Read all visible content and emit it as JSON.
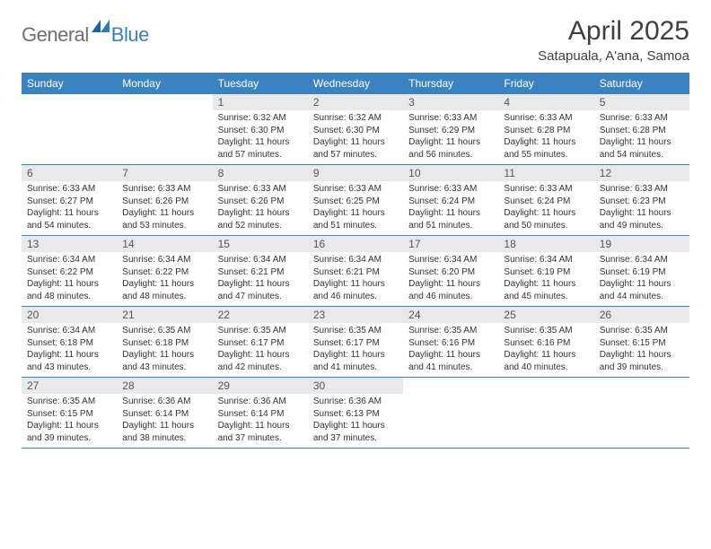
{
  "logo": {
    "general": "General",
    "blue": "Blue"
  },
  "title": "April 2025",
  "location": "Satapuala, A'ana, Samoa",
  "colors": {
    "header_bg": "#3b83c0",
    "header_text": "#ffffff",
    "daynum_bg": "#e9e9e9",
    "daynum_text": "#555555",
    "body_text": "#333333",
    "divider": "#3b83c0",
    "logo_general": "#6f6f6f",
    "logo_blue": "#3a7fc0",
    "title_color": "#3f3f3f"
  },
  "day_names": [
    "Sunday",
    "Monday",
    "Tuesday",
    "Wednesday",
    "Thursday",
    "Friday",
    "Saturday"
  ],
  "weeks": [
    [
      {
        "empty": true
      },
      {
        "empty": true
      },
      {
        "num": "1",
        "sunrise": "Sunrise: 6:32 AM",
        "sunset": "Sunset: 6:30 PM",
        "dl1": "Daylight: 11 hours",
        "dl2": "and 57 minutes."
      },
      {
        "num": "2",
        "sunrise": "Sunrise: 6:32 AM",
        "sunset": "Sunset: 6:30 PM",
        "dl1": "Daylight: 11 hours",
        "dl2": "and 57 minutes."
      },
      {
        "num": "3",
        "sunrise": "Sunrise: 6:33 AM",
        "sunset": "Sunset: 6:29 PM",
        "dl1": "Daylight: 11 hours",
        "dl2": "and 56 minutes."
      },
      {
        "num": "4",
        "sunrise": "Sunrise: 6:33 AM",
        "sunset": "Sunset: 6:28 PM",
        "dl1": "Daylight: 11 hours",
        "dl2": "and 55 minutes."
      },
      {
        "num": "5",
        "sunrise": "Sunrise: 6:33 AM",
        "sunset": "Sunset: 6:28 PM",
        "dl1": "Daylight: 11 hours",
        "dl2": "and 54 minutes."
      }
    ],
    [
      {
        "num": "6",
        "sunrise": "Sunrise: 6:33 AM",
        "sunset": "Sunset: 6:27 PM",
        "dl1": "Daylight: 11 hours",
        "dl2": "and 54 minutes."
      },
      {
        "num": "7",
        "sunrise": "Sunrise: 6:33 AM",
        "sunset": "Sunset: 6:26 PM",
        "dl1": "Daylight: 11 hours",
        "dl2": "and 53 minutes."
      },
      {
        "num": "8",
        "sunrise": "Sunrise: 6:33 AM",
        "sunset": "Sunset: 6:26 PM",
        "dl1": "Daylight: 11 hours",
        "dl2": "and 52 minutes."
      },
      {
        "num": "9",
        "sunrise": "Sunrise: 6:33 AM",
        "sunset": "Sunset: 6:25 PM",
        "dl1": "Daylight: 11 hours",
        "dl2": "and 51 minutes."
      },
      {
        "num": "10",
        "sunrise": "Sunrise: 6:33 AM",
        "sunset": "Sunset: 6:24 PM",
        "dl1": "Daylight: 11 hours",
        "dl2": "and 51 minutes."
      },
      {
        "num": "11",
        "sunrise": "Sunrise: 6:33 AM",
        "sunset": "Sunset: 6:24 PM",
        "dl1": "Daylight: 11 hours",
        "dl2": "and 50 minutes."
      },
      {
        "num": "12",
        "sunrise": "Sunrise: 6:33 AM",
        "sunset": "Sunset: 6:23 PM",
        "dl1": "Daylight: 11 hours",
        "dl2": "and 49 minutes."
      }
    ],
    [
      {
        "num": "13",
        "sunrise": "Sunrise: 6:34 AM",
        "sunset": "Sunset: 6:22 PM",
        "dl1": "Daylight: 11 hours",
        "dl2": "and 48 minutes."
      },
      {
        "num": "14",
        "sunrise": "Sunrise: 6:34 AM",
        "sunset": "Sunset: 6:22 PM",
        "dl1": "Daylight: 11 hours",
        "dl2": "and 48 minutes."
      },
      {
        "num": "15",
        "sunrise": "Sunrise: 6:34 AM",
        "sunset": "Sunset: 6:21 PM",
        "dl1": "Daylight: 11 hours",
        "dl2": "and 47 minutes."
      },
      {
        "num": "16",
        "sunrise": "Sunrise: 6:34 AM",
        "sunset": "Sunset: 6:21 PM",
        "dl1": "Daylight: 11 hours",
        "dl2": "and 46 minutes."
      },
      {
        "num": "17",
        "sunrise": "Sunrise: 6:34 AM",
        "sunset": "Sunset: 6:20 PM",
        "dl1": "Daylight: 11 hours",
        "dl2": "and 46 minutes."
      },
      {
        "num": "18",
        "sunrise": "Sunrise: 6:34 AM",
        "sunset": "Sunset: 6:19 PM",
        "dl1": "Daylight: 11 hours",
        "dl2": "and 45 minutes."
      },
      {
        "num": "19",
        "sunrise": "Sunrise: 6:34 AM",
        "sunset": "Sunset: 6:19 PM",
        "dl1": "Daylight: 11 hours",
        "dl2": "and 44 minutes."
      }
    ],
    [
      {
        "num": "20",
        "sunrise": "Sunrise: 6:34 AM",
        "sunset": "Sunset: 6:18 PM",
        "dl1": "Daylight: 11 hours",
        "dl2": "and 43 minutes."
      },
      {
        "num": "21",
        "sunrise": "Sunrise: 6:35 AM",
        "sunset": "Sunset: 6:18 PM",
        "dl1": "Daylight: 11 hours",
        "dl2": "and 43 minutes."
      },
      {
        "num": "22",
        "sunrise": "Sunrise: 6:35 AM",
        "sunset": "Sunset: 6:17 PM",
        "dl1": "Daylight: 11 hours",
        "dl2": "and 42 minutes."
      },
      {
        "num": "23",
        "sunrise": "Sunrise: 6:35 AM",
        "sunset": "Sunset: 6:17 PM",
        "dl1": "Daylight: 11 hours",
        "dl2": "and 41 minutes."
      },
      {
        "num": "24",
        "sunrise": "Sunrise: 6:35 AM",
        "sunset": "Sunset: 6:16 PM",
        "dl1": "Daylight: 11 hours",
        "dl2": "and 41 minutes."
      },
      {
        "num": "25",
        "sunrise": "Sunrise: 6:35 AM",
        "sunset": "Sunset: 6:16 PM",
        "dl1": "Daylight: 11 hours",
        "dl2": "and 40 minutes."
      },
      {
        "num": "26",
        "sunrise": "Sunrise: 6:35 AM",
        "sunset": "Sunset: 6:15 PM",
        "dl1": "Daylight: 11 hours",
        "dl2": "and 39 minutes."
      }
    ],
    [
      {
        "num": "27",
        "sunrise": "Sunrise: 6:35 AM",
        "sunset": "Sunset: 6:15 PM",
        "dl1": "Daylight: 11 hours",
        "dl2": "and 39 minutes."
      },
      {
        "num": "28",
        "sunrise": "Sunrise: 6:36 AM",
        "sunset": "Sunset: 6:14 PM",
        "dl1": "Daylight: 11 hours",
        "dl2": "and 38 minutes."
      },
      {
        "num": "29",
        "sunrise": "Sunrise: 6:36 AM",
        "sunset": "Sunset: 6:14 PM",
        "dl1": "Daylight: 11 hours",
        "dl2": "and 37 minutes."
      },
      {
        "num": "30",
        "sunrise": "Sunrise: 6:36 AM",
        "sunset": "Sunset: 6:13 PM",
        "dl1": "Daylight: 11 hours",
        "dl2": "and 37 minutes."
      },
      {
        "empty": true
      },
      {
        "empty": true
      },
      {
        "empty": true
      }
    ]
  ]
}
